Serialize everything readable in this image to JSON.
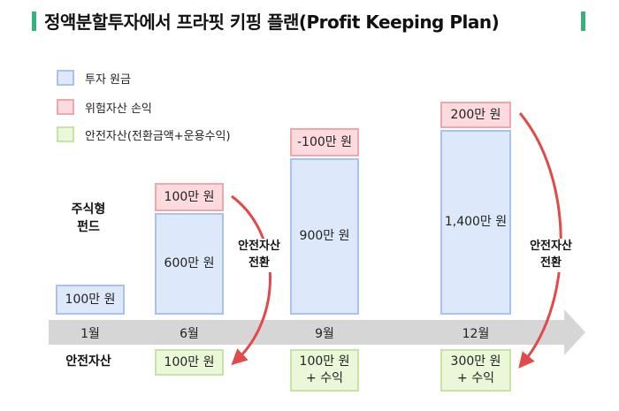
{
  "title": "정액분할투자에서 프라핏 키핑 플랜(Profit Keeping Plan)",
  "legend": [
    {
      "label": "투자 원금",
      "color": "#dde9fb",
      "border": "#a9c4ec"
    },
    {
      "label": "위험자산 손익",
      "color": "#fcdadd",
      "border": "#f0a6ad"
    },
    {
      "label": "안전자산(전환금액+운용수익)",
      "color": "#eaf7d9",
      "border": "#c7e4a4"
    }
  ],
  "rows": {
    "stock_fund": "주식형\n펀드",
    "safe_asset": "안전자산"
  },
  "timeline": [
    "1월",
    "6월",
    "9월",
    "12월"
  ],
  "risk_assets": {
    "jan": {
      "principal": "100만 원"
    },
    "jun": {
      "principal": "600만 원",
      "gain": "100만 원"
    },
    "sep": {
      "principal": "900만 원",
      "gain": "-100만 원"
    },
    "dec": {
      "principal": "1,400만 원",
      "gain": "200만 원"
    }
  },
  "safe_assets": {
    "jun": "100만 원",
    "sep": "100만 원\n+ 수익",
    "dec": "300만 원\n+ 수익"
  },
  "transfer_label": "안전자산\n전환",
  "colors": {
    "accent": "#34b37a",
    "arrow": "#e04a4a",
    "timeline": "#d6d6d6"
  }
}
